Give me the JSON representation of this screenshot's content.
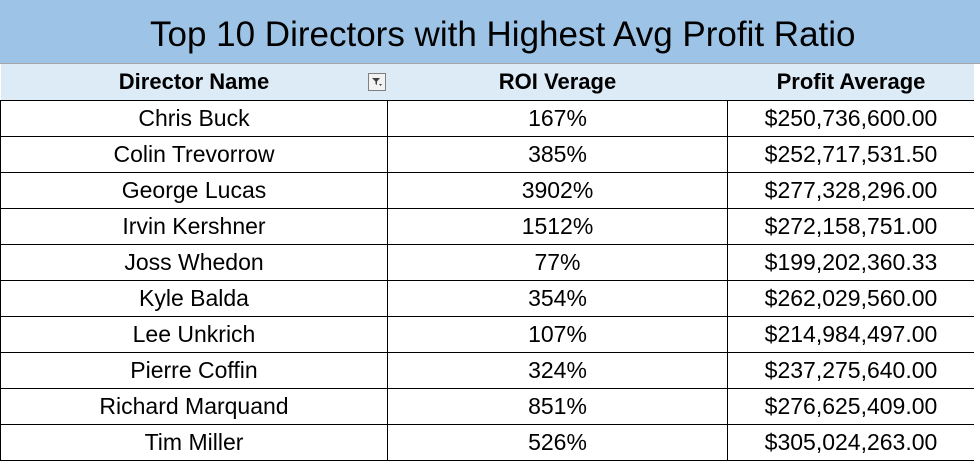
{
  "title": "Top 10 Directors with Highest Avg Profit Ratio",
  "headers": {
    "director": "Director Name",
    "roi": "ROI Verage",
    "profit": "Profit Average"
  },
  "filter_icon": "filter-dropdown-icon",
  "colors": {
    "title_bg": "#9dc3e6",
    "header_bg": "#ddebf7"
  },
  "rows": [
    {
      "director": "Chris Buck",
      "roi": "167%",
      "profit": "$250,736,600.00"
    },
    {
      "director": "Colin Trevorrow",
      "roi": "385%",
      "profit": "$252,717,531.50"
    },
    {
      "director": "George Lucas",
      "roi": "3902%",
      "profit": "$277,328,296.00"
    },
    {
      "director": "Irvin Kershner",
      "roi": "1512%",
      "profit": "$272,158,751.00"
    },
    {
      "director": "Joss Whedon",
      "roi": "77%",
      "profit": "$199,202,360.33"
    },
    {
      "director": "Kyle Balda",
      "roi": "354%",
      "profit": "$262,029,560.00"
    },
    {
      "director": "Lee Unkrich",
      "roi": "107%",
      "profit": "$214,984,497.00"
    },
    {
      "director": "Pierre Coffin",
      "roi": "324%",
      "profit": "$237,275,640.00"
    },
    {
      "director": "Richard Marquand",
      "roi": "851%",
      "profit": "$276,625,409.00"
    },
    {
      "director": "Tim Miller",
      "roi": "526%",
      "profit": "$305,024,263.00"
    }
  ]
}
